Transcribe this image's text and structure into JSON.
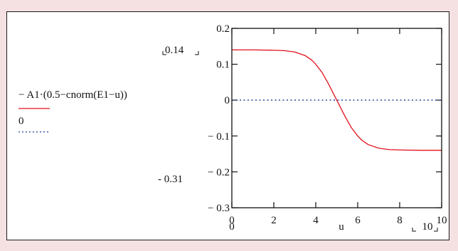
{
  "chart_data": {
    "type": "line",
    "x_var": "u",
    "x_range_labels": [
      "0",
      "10"
    ],
    "y_range_labels": [
      "0.14",
      "- 0.31"
    ],
    "xlim": [
      0,
      10
    ],
    "ylim": [
      -0.3,
      0.2
    ],
    "xticks": [
      0,
      2,
      4,
      6,
      8,
      10
    ],
    "yticks": [
      0.2,
      0.1,
      0,
      -0.1,
      -0.2,
      -0.3
    ],
    "xtick_labels": [
      "0",
      "2",
      "4",
      "6",
      "8",
      "10"
    ],
    "ytick_labels": [
      "0.2",
      "0.1",
      "0",
      "− 0.1",
      "− 0.2",
      "− 0.3"
    ],
    "grid": false,
    "series": [
      {
        "name": "− A1·(0.5−cnorm(E1−u))",
        "style": "solid",
        "color": "#e0101b",
        "x": [
          0,
          1,
          2,
          2.5,
          3,
          3.5,
          3.8,
          4,
          4.3,
          4.6,
          5,
          5.4,
          5.7,
          6,
          6.2,
          6.5,
          7,
          7.5,
          8,
          9,
          10
        ],
        "y": [
          0.14,
          0.14,
          0.139,
          0.138,
          0.134,
          0.124,
          0.112,
          0.1,
          0.077,
          0.046,
          0,
          -0.046,
          -0.077,
          -0.1,
          -0.112,
          -0.124,
          -0.134,
          -0.138,
          -0.139,
          -0.14,
          -0.14
        ]
      },
      {
        "name": "0",
        "style": "dotted",
        "color": "#1a3a9a",
        "x": [
          0,
          10
        ],
        "y": [
          0,
          0
        ]
      }
    ]
  }
}
